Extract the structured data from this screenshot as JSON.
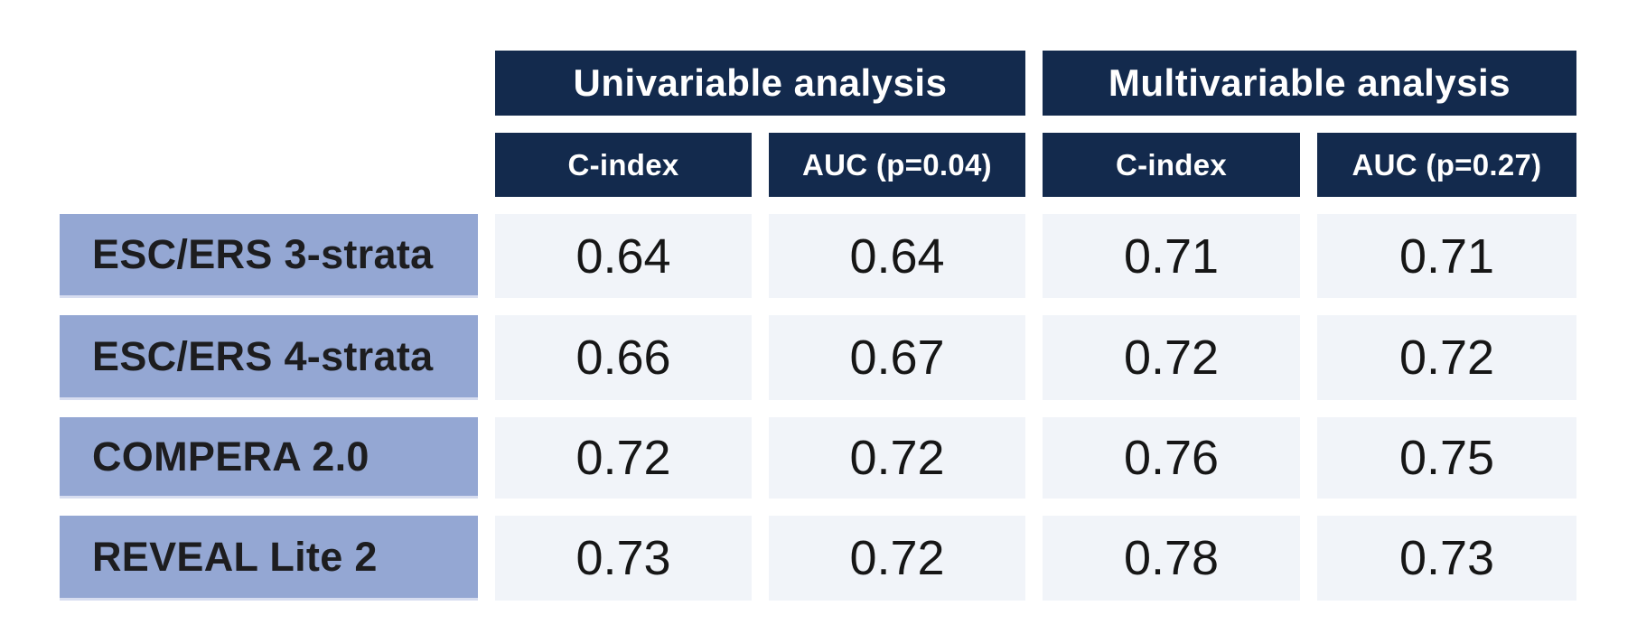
{
  "table": {
    "groups": [
      {
        "label": "Univariable analysis",
        "columns": [
          "C-index",
          "AUC (p=0.04)"
        ]
      },
      {
        "label": "Multivariable analysis",
        "columns": [
          "C-index",
          "AUC (p=0.27)"
        ]
      }
    ],
    "rows": [
      {
        "label": "ESC/ERS 3-strata",
        "values": [
          "0.64",
          "0.64",
          "0.71",
          "0.71"
        ]
      },
      {
        "label": "ESC/ERS 4-strata",
        "values": [
          "0.66",
          "0.67",
          "0.72",
          "0.72"
        ]
      },
      {
        "label": "COMPERA 2.0",
        "values": [
          "0.72",
          "0.72",
          "0.76",
          "0.75"
        ]
      },
      {
        "label": "REVEAL Lite 2",
        "values": [
          "0.73",
          "0.72",
          "0.78",
          "0.73"
        ]
      }
    ]
  },
  "chart_data": {
    "type": "table",
    "title": "",
    "column_groups": [
      "Univariable analysis",
      "Multivariable analysis"
    ],
    "columns": [
      "Univariable C-index",
      "Univariable AUC (p=0.04)",
      "Multivariable C-index",
      "Multivariable AUC (p=0.27)"
    ],
    "rows": [
      "ESC/ERS 3-strata",
      "ESC/ERS 4-strata",
      "COMPERA 2.0",
      "REVEAL Lite 2"
    ],
    "values": [
      [
        0.64,
        0.64,
        0.71,
        0.71
      ],
      [
        0.66,
        0.67,
        0.72,
        0.72
      ],
      [
        0.72,
        0.72,
        0.76,
        0.75
      ],
      [
        0.73,
        0.72,
        0.78,
        0.73
      ]
    ]
  },
  "colors": {
    "header_navy": "#132A4D",
    "row_label_blue": "#94A7D3",
    "value_cell_bg": "#F1F4F9",
    "background": "#FFFFFF",
    "header_text": "#FFFFFF",
    "body_text": "#161616"
  }
}
